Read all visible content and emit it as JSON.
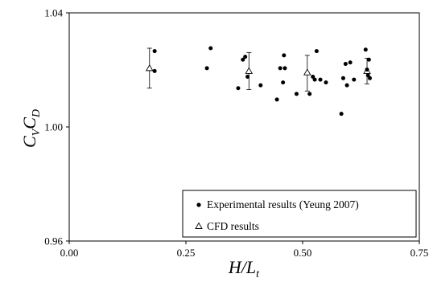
{
  "chart_data": {
    "type": "scatter",
    "xlabel": {
      "main": "H/L",
      "subscript": "t"
    },
    "ylabel": {
      "part1": "C",
      "sub1": "V",
      "part2": "C",
      "sub2": "D"
    },
    "xlim": [
      0,
      0.75
    ],
    "ylim": [
      0.96,
      1.04
    ],
    "xticks": [
      0.0,
      0.25,
      0.5,
      0.75
    ],
    "yticks": [
      0.96,
      1.0,
      1.04
    ],
    "xtick_labels": [
      "0.00",
      "0.25",
      "0.50",
      "0.75"
    ],
    "ytick_labels": [
      "0.96",
      "1.00",
      "1.04"
    ],
    "grid": false,
    "legend_position": "bottom-right",
    "series": [
      {
        "name": "Experimental results (Yeung 2007)",
        "marker": "filled-circle",
        "points": [
          [
            0.183,
            1.0266
          ],
          [
            0.183,
            1.0196
          ],
          [
            0.295,
            1.0206
          ],
          [
            0.303,
            1.0276
          ],
          [
            0.362,
            1.0136
          ],
          [
            0.372,
            1.0236
          ],
          [
            0.377,
            1.0246
          ],
          [
            0.382,
            1.0176
          ],
          [
            0.41,
            1.0146
          ],
          [
            0.445,
            1.0096
          ],
          [
            0.452,
            1.0206
          ],
          [
            0.458,
            1.0156
          ],
          [
            0.46,
            1.0251
          ],
          [
            0.462,
            1.0206
          ],
          [
            0.487,
            1.0116
          ],
          [
            0.515,
            1.0116
          ],
          [
            0.522,
            1.0176
          ],
          [
            0.526,
            1.0166
          ],
          [
            0.53,
            1.0266
          ],
          [
            0.538,
            1.0166
          ],
          [
            0.55,
            1.0156
          ],
          [
            0.583,
            1.0046
          ],
          [
            0.587,
            1.0171
          ],
          [
            0.592,
            1.0221
          ],
          [
            0.595,
            1.0146
          ],
          [
            0.602,
            1.0226
          ],
          [
            0.61,
            1.0166
          ],
          [
            0.635,
            1.0271
          ],
          [
            0.638,
            1.0201
          ],
          [
            0.64,
            1.0181
          ],
          [
            0.642,
            1.0236
          ],
          [
            0.644,
            1.0171
          ]
        ]
      },
      {
        "name": "CFD results",
        "marker": "open-triangle",
        "points": [
          {
            "x": 0.172,
            "y": 1.0206,
            "err_low": 1.0136,
            "err_high": 1.0276
          },
          {
            "x": 0.385,
            "y": 1.0196,
            "err_low": 1.0131,
            "err_high": 1.0261
          },
          {
            "x": 0.51,
            "y": 1.0191,
            "err_low": 1.0126,
            "err_high": 1.0251
          },
          {
            "x": 0.638,
            "y": 1.0196,
            "err_low": 1.0151,
            "err_high": 1.0241
          }
        ]
      }
    ]
  }
}
